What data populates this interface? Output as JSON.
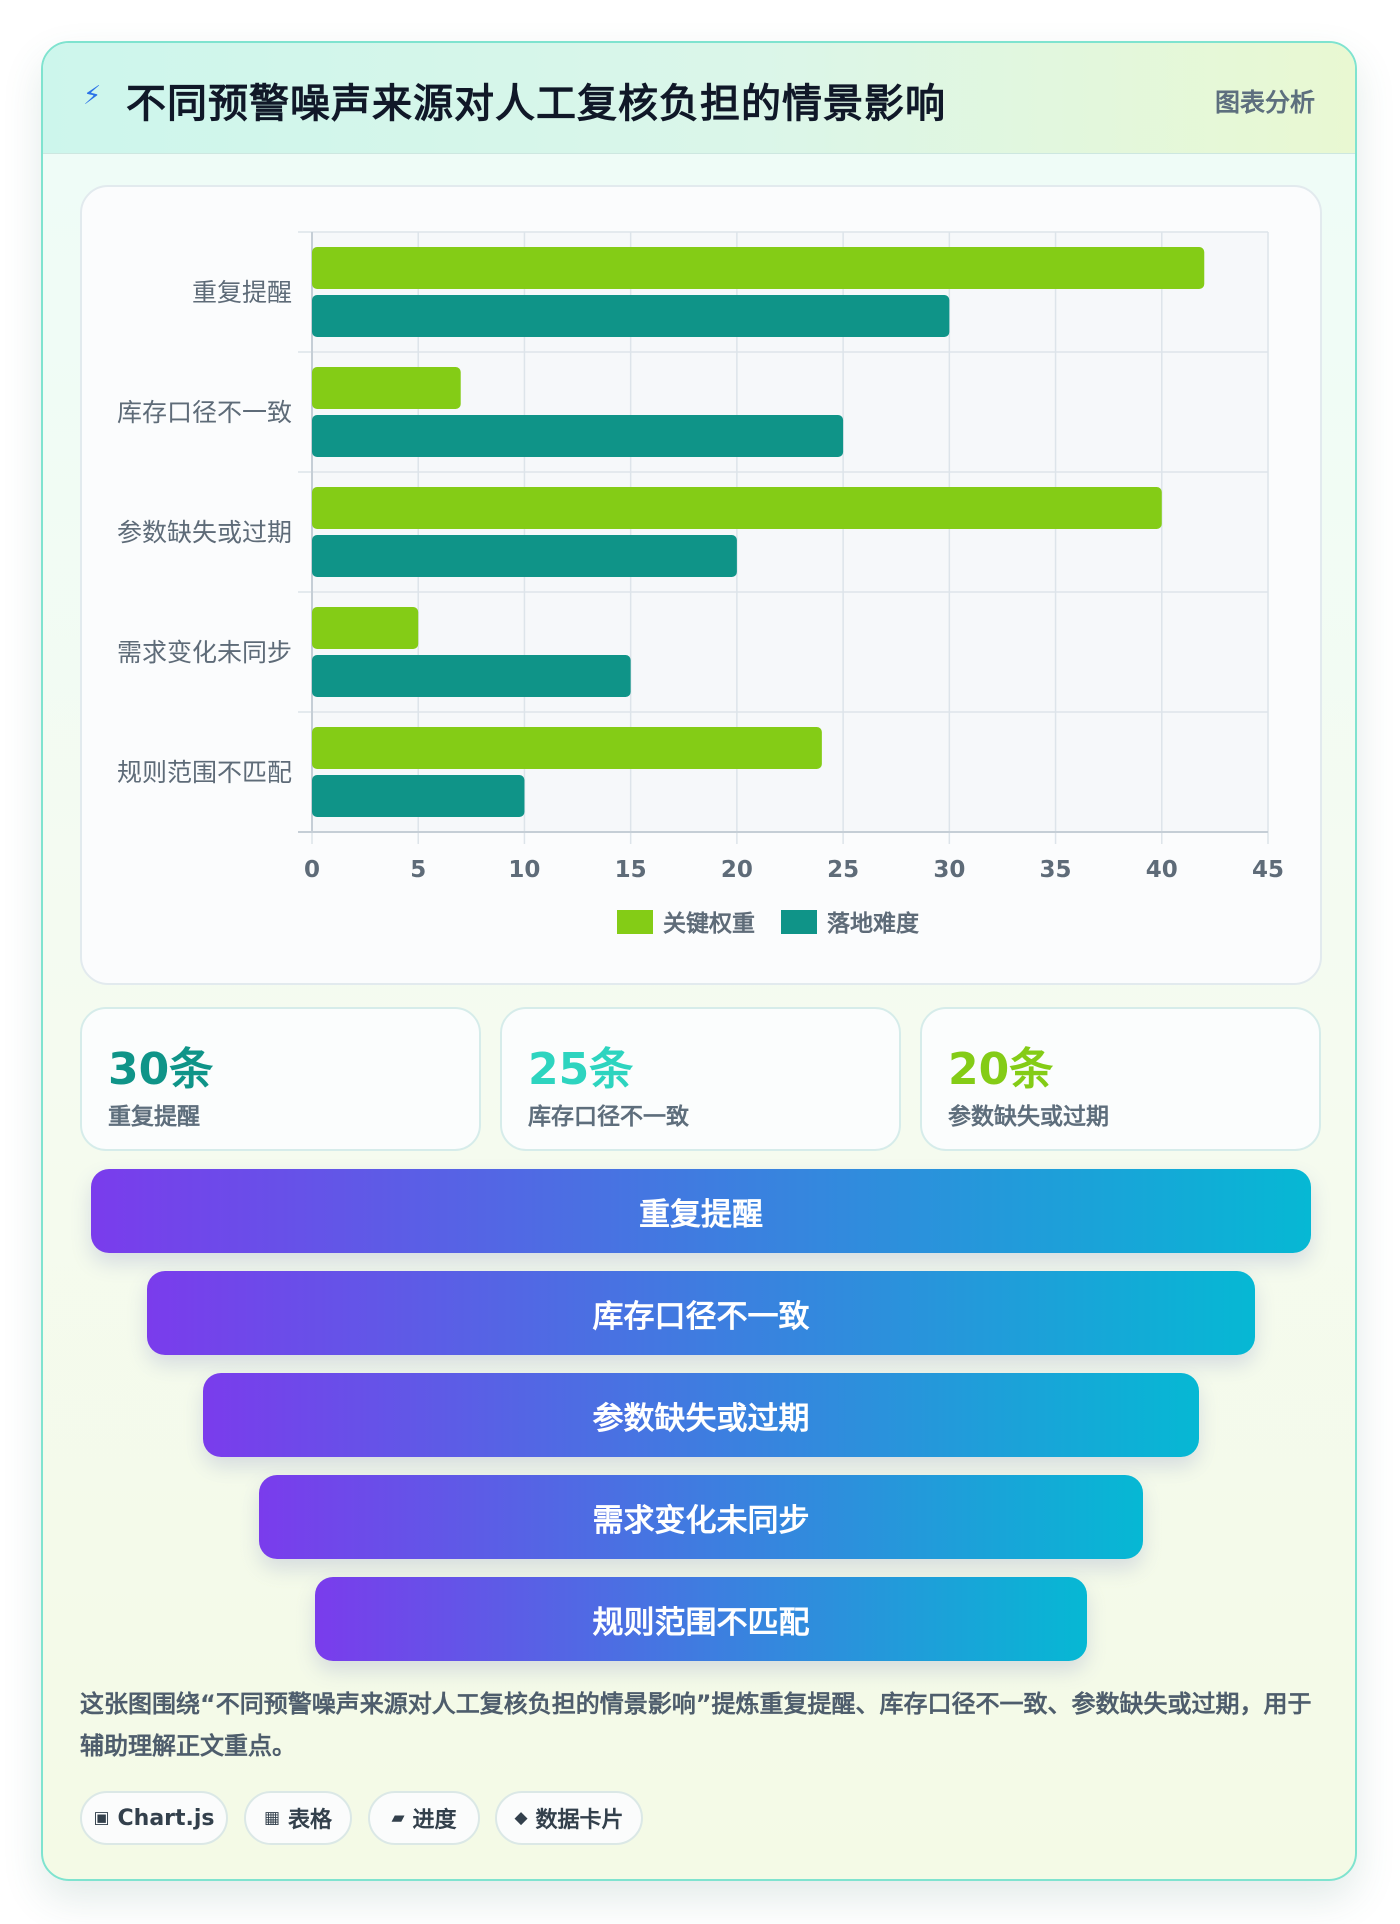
{
  "header": {
    "icon": "lightning-icon",
    "title": "不同预警噪声来源对人工复核负担的情景影响",
    "tag": "图表分析"
  },
  "chart_data": {
    "type": "bar",
    "orientation": "horizontal",
    "categories": [
      "重复提醒",
      "库存口径不一致",
      "参数缺失或过期",
      "需求变化未同步",
      "规则范围不匹配"
    ],
    "series": [
      {
        "name": "关键权重",
        "values": [
          42,
          7,
          40,
          5,
          24
        ],
        "color": "#84cc16"
      },
      {
        "name": "落地难度",
        "values": [
          30,
          25,
          20,
          15,
          10
        ],
        "color": "#0f9488"
      }
    ],
    "xlim": [
      0,
      45
    ],
    "xticks": [
      0,
      5,
      10,
      15,
      20,
      25,
      30,
      35,
      40,
      45
    ],
    "grid": true,
    "legend_position": "bottom"
  },
  "stats": [
    {
      "value": "30条",
      "label": "重复提醒",
      "color": "#0f9488"
    },
    {
      "value": "25条",
      "label": "库存口径不一致",
      "color": "#2dd4bf"
    },
    {
      "value": "20条",
      "label": "参数缺失或过期",
      "color": "#84cc16"
    }
  ],
  "funnel": [
    "重复提醒",
    "库存口径不一致",
    "参数缺失或过期",
    "需求变化未同步",
    "规则范围不匹配"
  ],
  "description": "这张图围绕“不同预警噪声来源对人工复核负担的情景影响”提炼重复提醒、库存口径不一致、参数缺失或过期，用于辅助理解正文重点。",
  "tags": [
    {
      "icon": "▣",
      "label": "Chart.js"
    },
    {
      "icon": "▦",
      "label": "表格"
    },
    {
      "icon": "▰",
      "label": "进度"
    },
    {
      "icon": "◆",
      "label": "数据卡片"
    }
  ]
}
